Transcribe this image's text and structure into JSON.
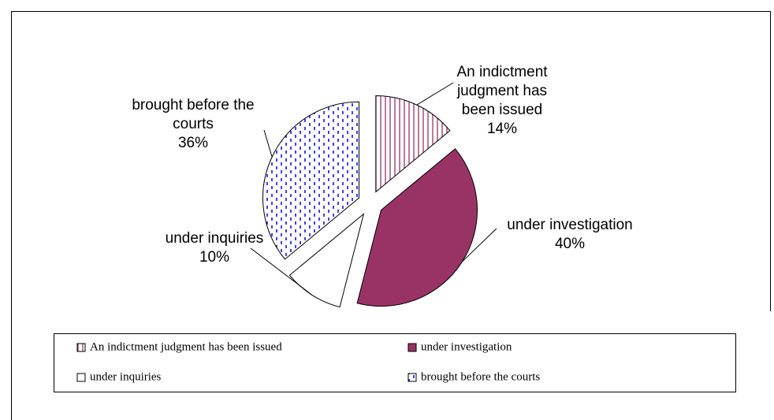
{
  "chart_data": {
    "type": "pie",
    "categories": [
      "An indictment judgment has been issued",
      "under investigation",
      "under inquiries",
      "brought before the courts"
    ],
    "values": [
      14,
      40,
      10,
      36
    ],
    "value_labels": [
      "14%",
      "40%",
      "10%",
      "36%"
    ],
    "colors": [
      "#993366",
      "#993366",
      "#ffffff",
      "#0000ff"
    ],
    "legend": "bottom"
  }
}
